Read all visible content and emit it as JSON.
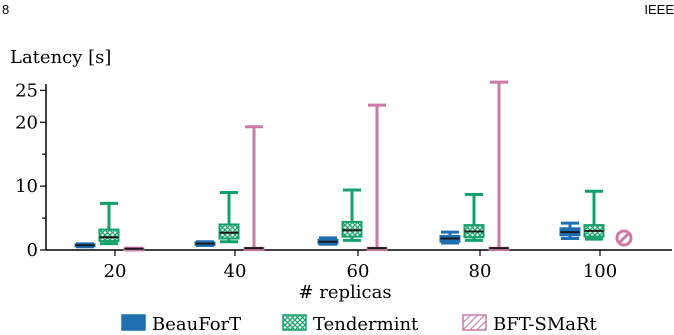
{
  "page": {
    "page_number": "8",
    "running_head": "IEEE"
  },
  "chart_data": {
    "type": "boxplot",
    "title": "",
    "ylabel": "Latency [s]",
    "xlabel": "# replicas",
    "categories": [
      "20",
      "40",
      "60",
      "80",
      "100"
    ],
    "y_ticks": [
      0,
      10,
      20,
      25
    ],
    "ylim": [
      0,
      26
    ],
    "grid": false,
    "legend_position": "bottom",
    "series": [
      {
        "name": "BeauForT",
        "color": "#1f6fb2",
        "pattern": "solid",
        "boxes": [
          {
            "whisker_low": 0.5,
            "q1": 0.6,
            "median": 0.75,
            "q3": 0.9,
            "whisker_high": 0.95
          },
          {
            "whisker_low": 0.7,
            "q1": 0.8,
            "median": 1.0,
            "q3": 1.2,
            "whisker_high": 1.3
          },
          {
            "whisker_low": 0.9,
            "q1": 1.0,
            "median": 1.3,
            "q3": 1.6,
            "whisker_high": 1.9
          },
          {
            "whisker_low": 1.1,
            "q1": 1.3,
            "median": 1.8,
            "q3": 2.2,
            "whisker_high": 2.8
          },
          {
            "whisker_low": 1.8,
            "q1": 2.3,
            "median": 2.8,
            "q3": 3.4,
            "whisker_high": 4.2
          }
        ]
      },
      {
        "name": "Tendermint",
        "color": "#14a06a",
        "pattern": "crosshatch",
        "boxes": [
          {
            "whisker_low": 1.0,
            "q1": 1.4,
            "median": 2.0,
            "q3": 3.2,
            "whisker_high": 7.3
          },
          {
            "whisker_low": 1.3,
            "q1": 1.8,
            "median": 2.7,
            "q3": 4.0,
            "whisker_high": 9.0
          },
          {
            "whisker_low": 1.5,
            "q1": 2.1,
            "median": 3.1,
            "q3": 4.4,
            "whisker_high": 9.4
          },
          {
            "whisker_low": 1.5,
            "q1": 2.0,
            "median": 2.9,
            "q3": 3.9,
            "whisker_high": 8.7
          },
          {
            "whisker_low": 1.7,
            "q1": 2.1,
            "median": 3.0,
            "q3": 3.9,
            "whisker_high": 9.2
          }
        ]
      },
      {
        "name": "BFT-SMaRt",
        "color": "#cc79a7",
        "pattern": "diagonal",
        "boxes": [
          {
            "whisker_low": 0.1,
            "q1": 0.15,
            "median": 0.2,
            "q3": 0.25,
            "whisker_high": 0.3
          },
          {
            "whisker_low": 0.2,
            "q1": 0.25,
            "median": 0.3,
            "q3": 0.35,
            "whisker_high": 19.3
          },
          {
            "whisker_low": 0.2,
            "q1": 0.25,
            "median": 0.3,
            "q3": 0.35,
            "whisker_high": 22.7
          },
          {
            "whisker_low": 0.2,
            "q1": 0.25,
            "median": 0.3,
            "q3": 0.35,
            "whisker_high": 26.3
          },
          null
        ]
      }
    ]
  }
}
